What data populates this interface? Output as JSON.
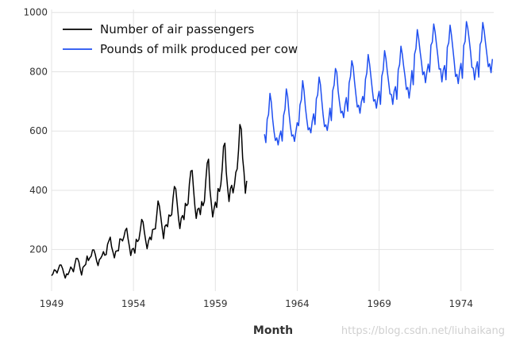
{
  "chart_data": {
    "type": "line",
    "xlabel": "Month",
    "ylabel": "",
    "xlim": [
      1949,
      1976
    ],
    "ylim": [
      60,
      1010
    ],
    "x_ticks": [
      "1949",
      "1954",
      "1959",
      "1964",
      "1969",
      "1974"
    ],
    "y_ticks": [
      "200",
      "400",
      "600",
      "800",
      "1000"
    ],
    "grid": true,
    "legend_position": "top-left",
    "series": [
      {
        "name": "Number of air passengers",
        "color": "#000000",
        "x_start": 1949,
        "step": 0.0833333,
        "values": [
          112,
          118,
          132,
          129,
          121,
          135,
          148,
          148,
          136,
          119,
          104,
          118,
          115,
          126,
          141,
          135,
          125,
          149,
          170,
          170,
          158,
          133,
          114,
          140,
          145,
          150,
          178,
          163,
          172,
          178,
          199,
          199,
          184,
          162,
          146,
          166,
          171,
          180,
          193,
          181,
          183,
          218,
          230,
          242,
          209,
          191,
          172,
          194,
          196,
          196,
          236,
          235,
          229,
          243,
          264,
          272,
          237,
          211,
          180,
          201,
          204,
          188,
          235,
          227,
          234,
          264,
          302,
          293,
          259,
          229,
          203,
          229,
          242,
          233,
          267,
          269,
          270,
          315,
          364,
          347,
          312,
          274,
          237,
          278,
          284,
          277,
          317,
          313,
          318,
          374,
          413,
          405,
          355,
          306,
          271,
          306,
          315,
          301,
          356,
          348,
          355,
          422,
          465,
          467,
          404,
          347,
          305,
          336,
          340,
          318,
          362,
          348,
          363,
          435,
          491,
          505,
          404,
          359,
          310,
          337,
          360,
          342,
          406,
          396,
          420,
          472,
          548,
          559,
          463,
          407,
          362,
          405,
          417,
          391,
          419,
          461,
          472,
          535,
          622,
          606,
          508,
          461,
          390,
          432
        ]
      },
      {
        "name": "Pounds of milk produced per cow",
        "color": "#1f4ff0",
        "x_start": 1962,
        "step": 0.0833333,
        "values": [
          589,
          561,
          640,
          656,
          727,
          697,
          640,
          599,
          568,
          577,
          553,
          582,
          600,
          566,
          653,
          673,
          742,
          716,
          660,
          617,
          583,
          587,
          565,
          598,
          628,
          618,
          688,
          705,
          770,
          736,
          678,
          639,
          604,
          611,
          594,
          634,
          658,
          622,
          709,
          722,
          782,
          756,
          702,
          653,
          615,
          621,
          602,
          635,
          677,
          635,
          736,
          755,
          811,
          798,
          735,
          697,
          661,
          667,
          645,
          688,
          713,
          667,
          762,
          784,
          837,
          817,
          767,
          722,
          681,
          687,
          660,
          698,
          717,
          696,
          775,
          796,
          858,
          826,
          783,
          740,
          701,
          706,
          677,
          711,
          734,
          690,
          785,
          805,
          871,
          845,
          801,
          764,
          725,
          723,
          690,
          734,
          750,
          707,
          807,
          824,
          886,
          859,
          819,
          783,
          740,
          747,
          711,
          751,
          804,
          756,
          860,
          878,
          942,
          913,
          869,
          834,
          790,
          800,
          763,
          800,
          826,
          799,
          890,
          900,
          961,
          935,
          894,
          855,
          809,
          810,
          766,
          805,
          821,
          773,
          883,
          898,
          957,
          924,
          881,
          837,
          784,
          791,
          760,
          802,
          828,
          778,
          889,
          902,
          969,
          947,
          908,
          867,
          815,
          812,
          773,
          813,
          834,
          782,
          892,
          903,
          966,
          937,
          896,
          858,
          817,
          827,
          797,
          843
        ]
      }
    ]
  },
  "watermark": "https://blog.csdn.net/liuhaikang"
}
